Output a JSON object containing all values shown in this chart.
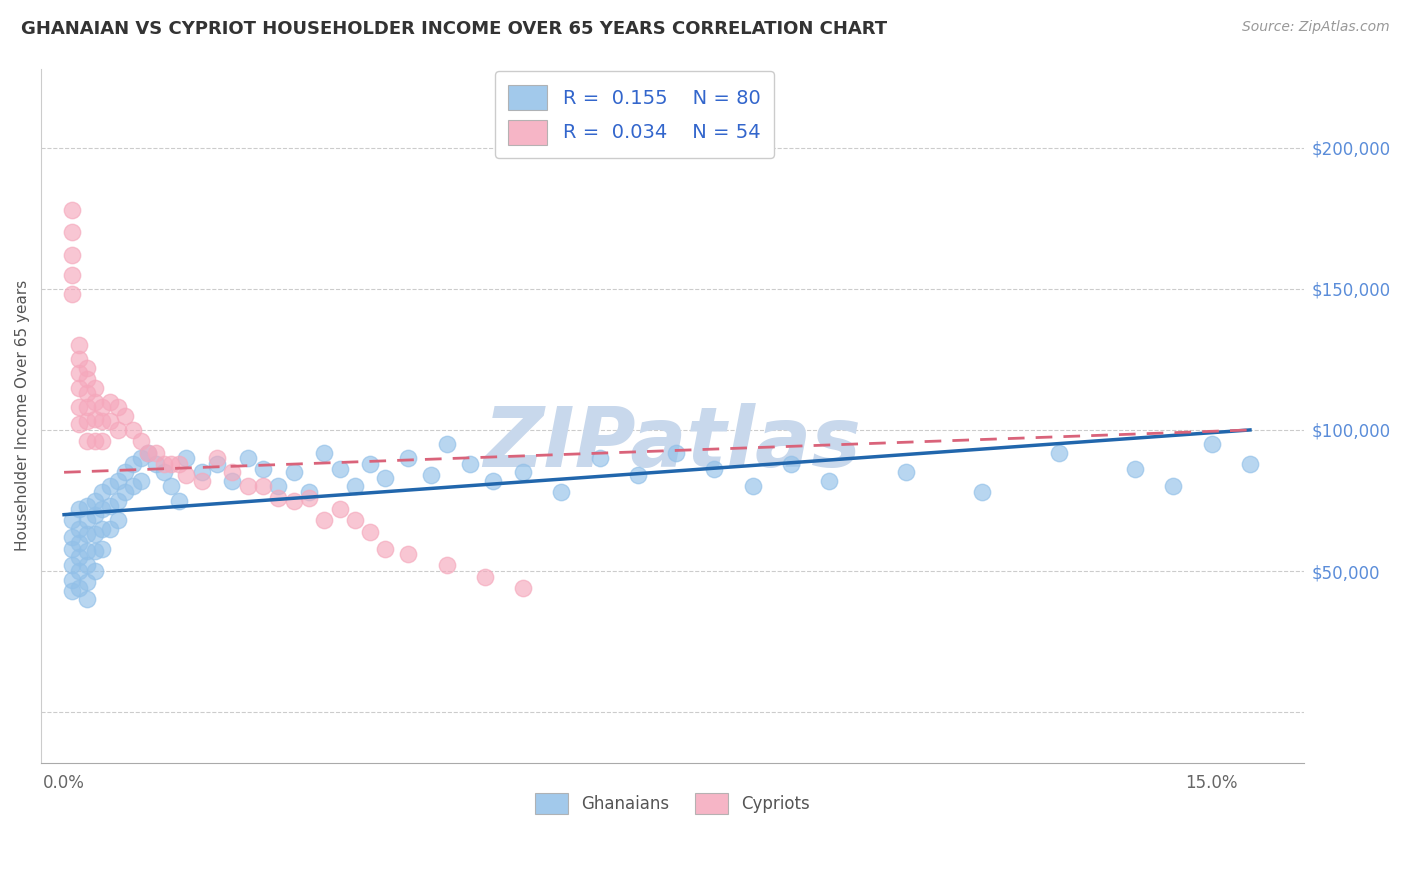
{
  "title": "GHANAIAN VS CYPRIOT HOUSEHOLDER INCOME OVER 65 YEARS CORRELATION CHART",
  "source": "Source: ZipAtlas.com",
  "ylabel": "Householder Income Over 65 years",
  "ytick_values": [
    0,
    50000,
    100000,
    150000,
    200000
  ],
  "ytick_labels": [
    "",
    "$50,000",
    "$100,000",
    "$150,000",
    "$200,000"
  ],
  "xlim": [
    -0.003,
    0.162
  ],
  "ylim": [
    -18000,
    228000
  ],
  "ghanaian_color": "#92C0E8",
  "cypriot_color": "#F5A8BC",
  "ghanaian_line_color": "#2166AC",
  "cypriot_line_color": "#D9637A",
  "R_ghanaian": 0.155,
  "N_ghanaian": 80,
  "R_cypriot": 0.034,
  "N_cypriot": 54,
  "watermark": "ZIPatlas",
  "watermark_color": "#C8D8EC",
  "legend_R_color": "#3366CC",
  "legend_N_color": "#CC3333",
  "ghanaian_x": [
    0.001,
    0.001,
    0.001,
    0.001,
    0.001,
    0.001,
    0.002,
    0.002,
    0.002,
    0.002,
    0.002,
    0.002,
    0.003,
    0.003,
    0.003,
    0.003,
    0.003,
    0.003,
    0.003,
    0.004,
    0.004,
    0.004,
    0.004,
    0.004,
    0.005,
    0.005,
    0.005,
    0.005,
    0.006,
    0.006,
    0.006,
    0.007,
    0.007,
    0.007,
    0.008,
    0.008,
    0.009,
    0.009,
    0.01,
    0.01,
    0.011,
    0.012,
    0.013,
    0.014,
    0.015,
    0.016,
    0.018,
    0.02,
    0.022,
    0.024,
    0.026,
    0.028,
    0.03,
    0.032,
    0.034,
    0.036,
    0.038,
    0.04,
    0.042,
    0.045,
    0.048,
    0.05,
    0.053,
    0.056,
    0.06,
    0.065,
    0.07,
    0.075,
    0.08,
    0.085,
    0.09,
    0.095,
    0.1,
    0.11,
    0.12,
    0.13,
    0.14,
    0.145,
    0.15,
    0.155
  ],
  "ghanaian_y": [
    68000,
    62000,
    58000,
    52000,
    47000,
    43000,
    72000,
    65000,
    60000,
    55000,
    50000,
    44000,
    73000,
    68000,
    63000,
    57000,
    52000,
    46000,
    40000,
    75000,
    70000,
    63000,
    57000,
    50000,
    78000,
    72000,
    65000,
    58000,
    80000,
    73000,
    65000,
    82000,
    75000,
    68000,
    85000,
    78000,
    88000,
    80000,
    90000,
    82000,
    92000,
    88000,
    85000,
    80000,
    75000,
    90000,
    85000,
    88000,
    82000,
    90000,
    86000,
    80000,
    85000,
    78000,
    92000,
    86000,
    80000,
    88000,
    83000,
    90000,
    84000,
    95000,
    88000,
    82000,
    85000,
    78000,
    90000,
    84000,
    92000,
    86000,
    80000,
    88000,
    82000,
    85000,
    78000,
    92000,
    86000,
    80000,
    95000,
    88000
  ],
  "cypriot_x": [
    0.001,
    0.001,
    0.001,
    0.001,
    0.001,
    0.002,
    0.002,
    0.002,
    0.002,
    0.002,
    0.002,
    0.003,
    0.003,
    0.003,
    0.003,
    0.003,
    0.003,
    0.004,
    0.004,
    0.004,
    0.004,
    0.005,
    0.005,
    0.005,
    0.006,
    0.006,
    0.007,
    0.007,
    0.008,
    0.009,
    0.01,
    0.011,
    0.012,
    0.013,
    0.014,
    0.015,
    0.016,
    0.018,
    0.02,
    0.022,
    0.024,
    0.026,
    0.028,
    0.03,
    0.032,
    0.034,
    0.036,
    0.038,
    0.04,
    0.042,
    0.045,
    0.05,
    0.055,
    0.06
  ],
  "cypriot_y": [
    178000,
    170000,
    162000,
    155000,
    148000,
    130000,
    125000,
    120000,
    115000,
    108000,
    102000,
    122000,
    118000,
    113000,
    108000,
    103000,
    96000,
    115000,
    110000,
    104000,
    96000,
    108000,
    103000,
    96000,
    110000,
    103000,
    108000,
    100000,
    105000,
    100000,
    96000,
    92000,
    92000,
    88000,
    88000,
    88000,
    84000,
    82000,
    90000,
    85000,
    80000,
    80000,
    76000,
    75000,
    76000,
    68000,
    72000,
    68000,
    64000,
    58000,
    56000,
    52000,
    48000,
    44000
  ]
}
